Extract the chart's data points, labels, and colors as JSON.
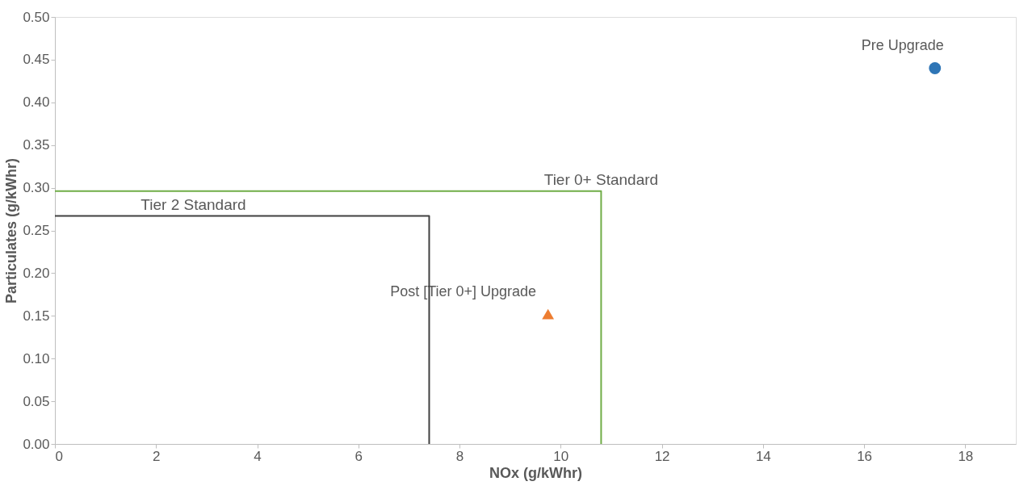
{
  "chart_data": {
    "type": "scatter",
    "xlabel": "NOx (g/kWhr)",
    "ylabel": "Particulates (g/kWhr)",
    "xlim": [
      0,
      19
    ],
    "xticks": [
      0,
      2,
      4,
      6,
      8,
      10,
      12,
      14,
      16,
      18
    ],
    "ylim": [
      0,
      0.5
    ],
    "yticks": [
      {
        "value": 0,
        "label": "0.00"
      },
      {
        "value": 0.05,
        "label": "0.05"
      },
      {
        "value": 0.1,
        "label": "0.10"
      },
      {
        "value": 0.15,
        "label": "0.15"
      },
      {
        "value": 0.2,
        "label": "0.20"
      },
      {
        "value": 0.25,
        "label": "0.25"
      },
      {
        "value": 0.3,
        "label": "0.30"
      },
      {
        "value": 0.35,
        "label": "0.35"
      },
      {
        "value": 0.4,
        "label": "0.40"
      },
      {
        "value": 0.45,
        "label": "0.45"
      },
      {
        "value": 0.5,
        "label": "0.50"
      }
    ],
    "grid": false,
    "legend": false,
    "series": [
      {
        "name": "Pre Upgrade",
        "type": "scatter",
        "marker": "circle",
        "color": "#2e75b6",
        "x": [
          17.4
        ],
        "values": [
          0.44
        ]
      },
      {
        "name": "Post [Tier 0+] Upgrade",
        "type": "scatter",
        "marker": "triangle",
        "color": "#ed7d31",
        "x": [
          9.75
        ],
        "values": [
          0.152
        ]
      },
      {
        "name": "Tier 2 Standard",
        "type": "line",
        "line_style": "solid",
        "color": "#404040",
        "x": [
          0,
          7.4,
          7.4
        ],
        "values": [
          0.267,
          0.267,
          0
        ]
      },
      {
        "name": "Tier 0+ Standard",
        "type": "line",
        "line_style": "solid",
        "color": "#70ad47",
        "x": [
          0,
          10.8,
          10.8
        ],
        "values": [
          0.296,
          0.296,
          0
        ]
      }
    ]
  }
}
